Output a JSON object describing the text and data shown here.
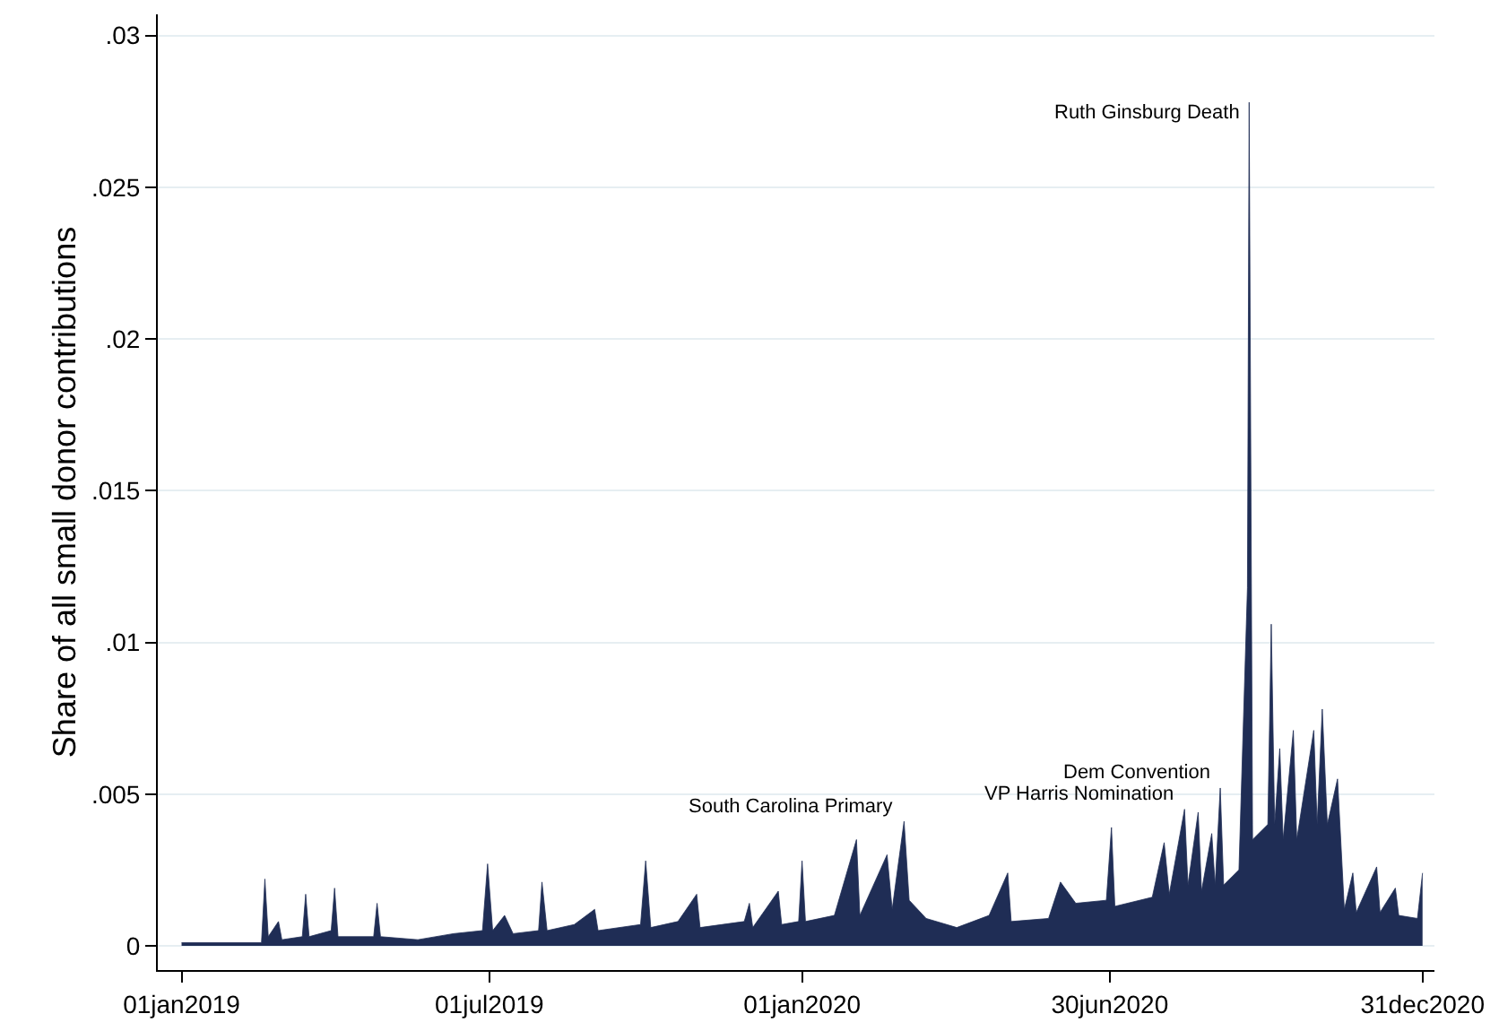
{
  "chart_data": {
    "type": "area",
    "ylabel": "Share of all small donor contributions",
    "x": [
      "2019-01-01",
      "2019-02-17",
      "2019-02-19",
      "2019-02-21",
      "2019-02-27",
      "2019-03-01",
      "2019-03-13",
      "2019-03-15",
      "2019-03-17",
      "2019-03-30",
      "2019-04-01",
      "2019-04-03",
      "2019-04-24",
      "2019-04-26",
      "2019-04-28",
      "2019-05-20",
      "2019-06-10",
      "2019-06-27",
      "2019-06-30",
      "2019-07-03",
      "2019-07-10",
      "2019-07-15",
      "2019-07-30",
      "2019-08-01",
      "2019-08-04",
      "2019-08-20",
      "2019-09-01",
      "2019-09-03",
      "2019-09-28",
      "2019-10-01",
      "2019-10-04",
      "2019-10-20",
      "2019-10-31",
      "2019-11-02",
      "2019-11-28",
      "2019-12-01",
      "2019-12-03",
      "2019-12-18",
      "2019-12-20",
      "2019-12-30",
      "2020-01-01",
      "2020-01-03",
      "2020-01-20",
      "2020-02-02",
      "2020-02-04",
      "2020-02-20",
      "2020-02-23",
      "2020-03-01",
      "2020-03-04",
      "2020-03-14",
      "2020-04-01",
      "2020-04-20",
      "2020-05-01",
      "2020-05-03",
      "2020-05-25",
      "2020-06-01",
      "2020-06-10",
      "2020-06-28",
      "2020-07-01",
      "2020-07-03",
      "2020-07-25",
      "2020-08-01",
      "2020-08-04",
      "2020-08-13",
      "2020-08-15",
      "2020-08-21",
      "2020-08-23",
      "2020-08-29",
      "2020-08-31",
      "2020-09-03",
      "2020-09-05",
      "2020-09-14",
      "2020-09-19",
      "2020-09-20",
      "2020-09-22",
      "2020-10-01",
      "2020-10-03",
      "2020-10-05",
      "2020-10-08",
      "2020-10-10",
      "2020-10-16",
      "2020-10-18",
      "2020-10-28",
      "2020-10-30",
      "2020-11-02",
      "2020-11-05",
      "2020-11-11",
      "2020-11-15",
      "2020-11-20",
      "2020-11-22",
      "2020-12-04",
      "2020-12-06",
      "2020-12-15",
      "2020-12-17",
      "2020-12-28",
      "2020-12-31"
    ],
    "series": [
      {
        "color": "#1f2d55",
        "values": [
          0.0001,
          0.0001,
          0.0022,
          0.0003,
          0.0008,
          0.0002,
          0.0003,
          0.0017,
          0.0003,
          0.0005,
          0.0019,
          0.0003,
          0.0003,
          0.0014,
          0.0003,
          0.0002,
          0.0004,
          0.0005,
          0.0027,
          0.0005,
          0.001,
          0.0004,
          0.0005,
          0.0021,
          0.0005,
          0.0007,
          0.0012,
          0.0005,
          0.0007,
          0.0028,
          0.0006,
          0.0008,
          0.0017,
          0.0006,
          0.0008,
          0.0014,
          0.0006,
          0.0018,
          0.0007,
          0.0008,
          0.0028,
          0.0008,
          0.001,
          0.0035,
          0.001,
          0.003,
          0.0012,
          0.0041,
          0.0015,
          0.0009,
          0.0006,
          0.001,
          0.0024,
          0.0008,
          0.0009,
          0.0021,
          0.0014,
          0.0015,
          0.0039,
          0.0013,
          0.0016,
          0.0034,
          0.0017,
          0.0045,
          0.002,
          0.0044,
          0.0018,
          0.0037,
          0.002,
          0.0052,
          0.002,
          0.0025,
          0.0118,
          0.0278,
          0.0035,
          0.004,
          0.0106,
          0.004,
          0.0065,
          0.0035,
          0.0071,
          0.0035,
          0.0071,
          0.004,
          0.0078,
          0.004,
          0.0055,
          0.0012,
          0.0024,
          0.0011,
          0.0026,
          0.0011,
          0.0019,
          0.001,
          0.0009,
          0.0024
        ]
      }
    ],
    "xlim": [
      "2018-12-18",
      "2021-01-07"
    ],
    "xticks": [
      {
        "value": "2019-01-01",
        "label": "01jan2019"
      },
      {
        "value": "2019-07-01",
        "label": "01jul2019"
      },
      {
        "value": "2020-01-01",
        "label": "01jan2020"
      },
      {
        "value": "2020-06-30",
        "label": "30jun2020"
      },
      {
        "value": "2020-12-31",
        "label": "31dec2020"
      }
    ],
    "ylim": [
      -0.0008,
      0.0307
    ],
    "yticks": [
      0,
      {
        "value": 0.005,
        "label": ".005"
      },
      {
        "value": 0.01,
        "label": ".01"
      },
      {
        "value": 0.015,
        "label": ".015"
      },
      {
        "value": 0.02,
        "label": ".02"
      },
      {
        "value": 0.025,
        "label": ".025"
      },
      {
        "value": 0.03,
        "label": ".03"
      }
    ],
    "grid": "y",
    "annotations": [
      {
        "text": "Ruth Ginsburg Death",
        "x": "2020-09-20",
        "y": 0.027
      },
      {
        "text": "South Carolina Primary",
        "x": "2020-03-01",
        "y": 0.0041
      },
      {
        "text": "VP Harris Nomination",
        "x": "2020-08-13",
        "y": 0.0045
      },
      {
        "text": "Dem Convention",
        "x": "2020-09-03",
        "y": 0.0052
      }
    ]
  }
}
